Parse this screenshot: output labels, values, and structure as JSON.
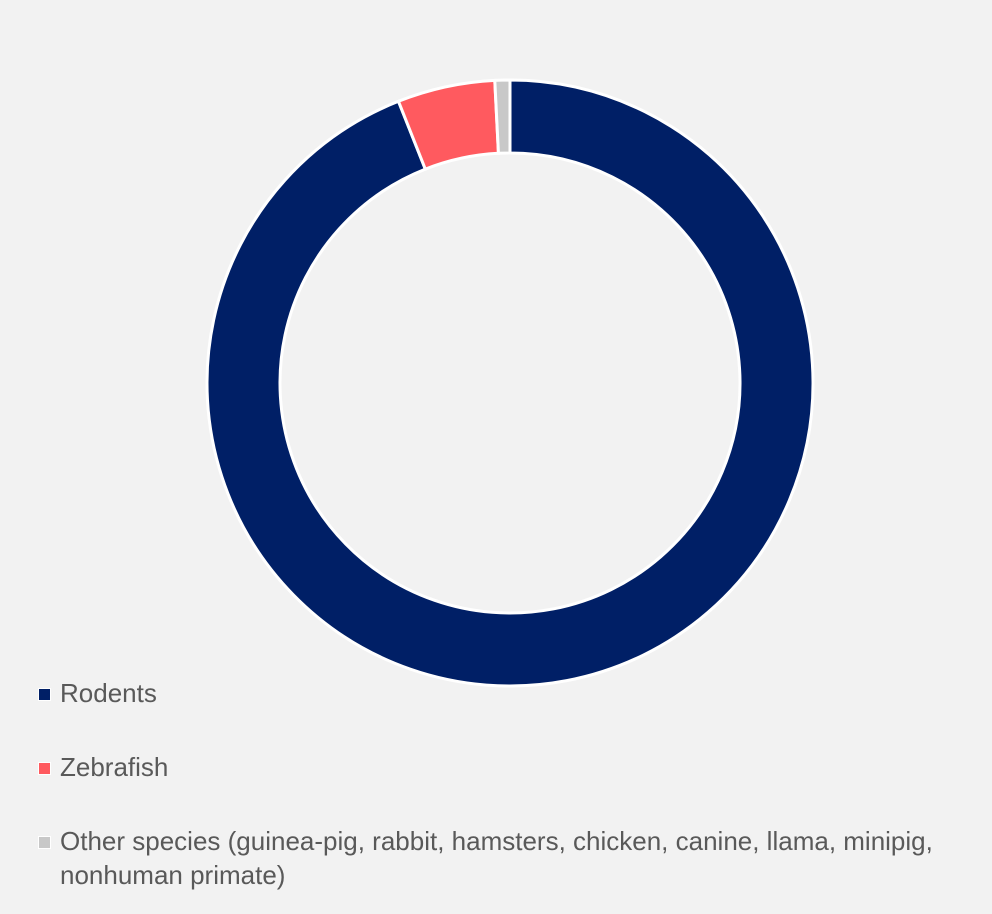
{
  "chart_data": {
    "type": "pie",
    "variant": "donut",
    "start_angle": "12 o'clock, clockwise",
    "legend_position": "bottom-left",
    "categories": [
      "Rodents",
      "Zebrafish",
      "Other species (guinea-pig, rabbit, hamsters, chicken, canine, llama, minipig, nonhuman primate)"
    ],
    "values": [
      94.0,
      5.2,
      0.8
    ],
    "colors": [
      "#001f66",
      "#ff5a5f",
      "#c8c8c8"
    ]
  }
}
